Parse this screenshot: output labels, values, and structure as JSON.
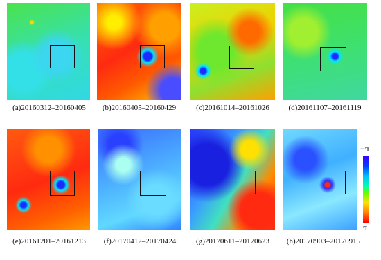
{
  "panels": [
    {
      "caption": "(a)20160312–20160405"
    },
    {
      "caption": "(b)20160405–20160429"
    },
    {
      "caption": "(c)20161014–20161026"
    },
    {
      "caption": "(d)20161107–20161119"
    },
    {
      "caption": "(e)20161201–20161213"
    },
    {
      "caption": "(f)20170412–20170424"
    },
    {
      "caption": "(g)20170611–20170623"
    },
    {
      "caption": "(h)20170903–20170915"
    }
  ],
  "colorbar": {
    "top_label": "−π",
    "bottom_label": "π"
  }
}
